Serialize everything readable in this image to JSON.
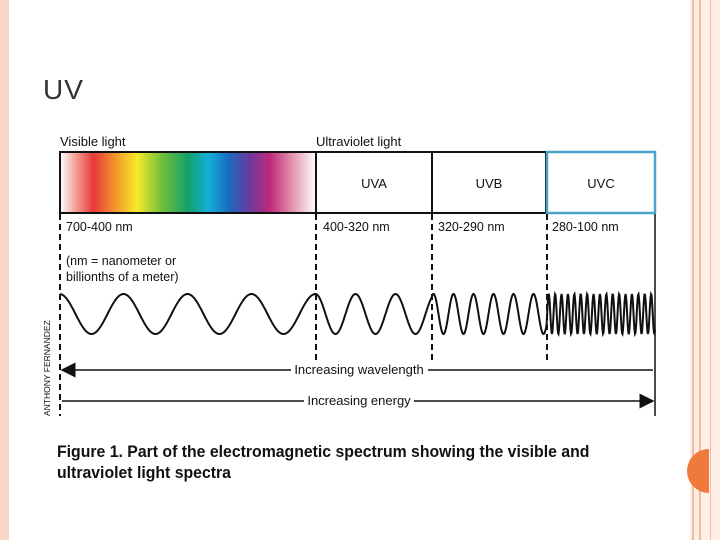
{
  "slide": {
    "title": "UV",
    "accent_color": "#f07a3c",
    "frame_color": "#f4b9a0"
  },
  "diagram": {
    "visible_label": "Visible light",
    "uv_label": "Ultraviolet light",
    "bands": [
      {
        "name": "UVA",
        "range": "400-320 nm"
      },
      {
        "name": "UVB",
        "range": "320-290 nm"
      },
      {
        "name": "UVC",
        "range": "280-100 nm"
      }
    ],
    "visible_range": "700-400 nm",
    "note_line1": "(nm = nanometer or",
    "note_line2": "billionths of a meter)",
    "credit": "ANTHONY FERNANDEZ",
    "wavelength_arrow": "Increasing wavelength",
    "energy_arrow": "Increasing energy",
    "uvc_border_color": "#4aa3c8"
  },
  "caption": {
    "line1": "Figure 1. Part of the electromagnetic spectrum showing the visible and",
    "line2": "ultraviolet light spectra"
  }
}
